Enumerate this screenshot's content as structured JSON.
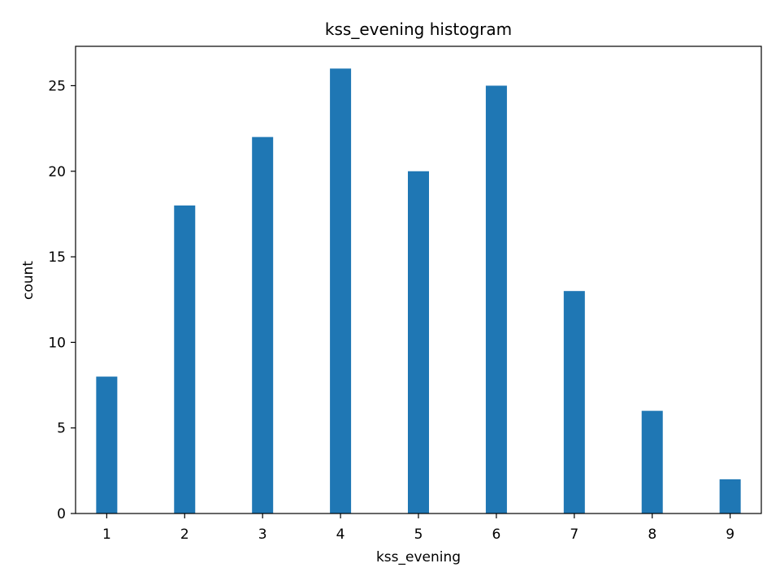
{
  "chart_data": {
    "type": "bar",
    "title": "kss_evening histogram",
    "xlabel": "kss_evening",
    "ylabel": "count",
    "bars": [
      {
        "x": 1,
        "count": 8
      },
      {
        "x": 2,
        "count": 18
      },
      {
        "x": 3,
        "count": 22
      },
      {
        "x": 4,
        "count": 26
      },
      {
        "x": 5,
        "count": 20
      },
      {
        "x": 6,
        "count": 25
      },
      {
        "x": 7,
        "count": 13
      },
      {
        "x": 8,
        "count": 6
      },
      {
        "x": 9,
        "count": 2
      }
    ],
    "xlim": [
      0.6,
      9.4
    ],
    "ylim": [
      0,
      27.3
    ],
    "xticks": [
      "1",
      "2",
      "3",
      "4",
      "5",
      "6",
      "7",
      "8",
      "9"
    ],
    "yticks": [
      "0",
      "5",
      "10",
      "15",
      "20",
      "25"
    ],
    "bar_color": "#1f77b4",
    "grid": false,
    "legend": "none"
  }
}
